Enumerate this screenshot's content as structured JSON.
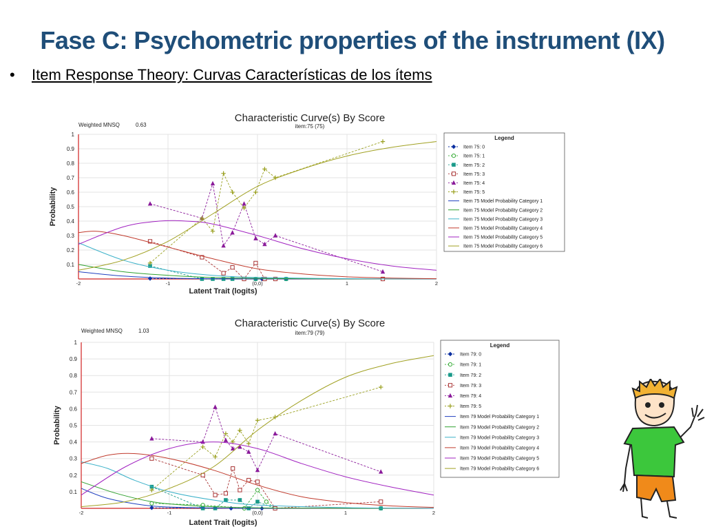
{
  "slide": {
    "title": "Fase C: Psychometric properties of the instrument (IX)",
    "bullet": "Item Response Theory: Curvas Características de los ítems"
  },
  "colors": {
    "title": "#1f4e79",
    "cat1": "#1f3fbf",
    "cat2": "#2ea02e",
    "cat3": "#38b0c8",
    "cat4": "#c0392b",
    "cat5": "#a020c0",
    "cat6": "#a0a020",
    "obs0": "#0b2fa0",
    "obs1": "#33aa33",
    "obs2": "#1a9a8a",
    "obs3": "#a83232",
    "obs4": "#8a1a9a",
    "obs5": "#9aa020"
  },
  "chart_data": [
    {
      "type": "line",
      "title": "Characteristic Curve(s) By Score",
      "subtitle": "item:75 (75)",
      "fit_label": "Weighted MNSQ",
      "fit_value": "0.63",
      "xlabel": "Latent Trait (logits)",
      "ylabel": "Probability",
      "xlim": [
        -2,
        2
      ],
      "ylim": [
        0,
        1
      ],
      "x_ticks": [
        "-2",
        "-1",
        "(0,0)",
        "1",
        "2"
      ],
      "y_ticks": [
        "0.1",
        "0.2",
        "0.3",
        "0.4",
        "0.5",
        "0.6",
        "0.7",
        "0.8",
        "0.9",
        "1"
      ],
      "legend_title": "Legend",
      "legend_position": "right",
      "grid": true,
      "series": [
        {
          "name": "Item 75: 0",
          "kind": "observed",
          "marker": "diamond",
          "color_key": "obs0",
          "points": [
            [
              -1.2,
              0.003
            ],
            [
              -0.15,
              0.0
            ],
            [
              0.05,
              0.0
            ],
            [
              1.4,
              0.0
            ]
          ]
        },
        {
          "name": "Item 75: 1",
          "kind": "observed",
          "marker": "circle",
          "color_key": "obs1",
          "points": [
            [
              -0.15,
              0.0
            ],
            [
              -0.02,
              0.0
            ],
            [
              0.08,
              0.0
            ],
            [
              0.2,
              0.0
            ],
            [
              0.32,
              0.0
            ],
            [
              1.4,
              0.0
            ]
          ]
        },
        {
          "name": "Item 75: 2",
          "kind": "observed",
          "marker": "square",
          "color_key": "obs2",
          "points": [
            [
              -1.2,
              0.09
            ],
            [
              -0.62,
              0.0
            ],
            [
              -0.5,
              0.0
            ],
            [
              -0.38,
              0.0
            ],
            [
              -0.28,
              0.0
            ],
            [
              -0.15,
              0.0
            ],
            [
              -0.02,
              0.0
            ],
            [
              0.2,
              0.0
            ],
            [
              0.32,
              0.0
            ],
            [
              1.4,
              0.0
            ]
          ]
        },
        {
          "name": "Item 75: 3",
          "kind": "observed",
          "marker": "square-open",
          "color_key": "obs3",
          "points": [
            [
              -1.2,
              0.26
            ],
            [
              -0.62,
              0.15
            ],
            [
              -0.38,
              0.04
            ],
            [
              -0.28,
              0.08
            ],
            [
              -0.15,
              0.0
            ],
            [
              -0.02,
              0.11
            ],
            [
              0.08,
              0.0
            ],
            [
              0.2,
              0.0
            ],
            [
              1.4,
              0.0
            ]
          ]
        },
        {
          "name": "Item 75: 4",
          "kind": "observed",
          "marker": "triangle",
          "color_key": "obs4",
          "points": [
            [
              -1.2,
              0.52
            ],
            [
              -0.62,
              0.42
            ],
            [
              -0.5,
              0.66
            ],
            [
              -0.38,
              0.23
            ],
            [
              -0.28,
              0.32
            ],
            [
              -0.15,
              0.52
            ],
            [
              -0.02,
              0.28
            ],
            [
              0.08,
              0.24
            ],
            [
              0.2,
              0.3
            ],
            [
              1.4,
              0.05
            ]
          ]
        },
        {
          "name": "Item 75: 5",
          "kind": "observed",
          "marker": "plus",
          "color_key": "obs5",
          "points": [
            [
              -1.2,
              0.11
            ],
            [
              -0.62,
              0.42
            ],
            [
              -0.5,
              0.33
            ],
            [
              -0.38,
              0.73
            ],
            [
              -0.28,
              0.6
            ],
            [
              -0.15,
              0.49
            ],
            [
              -0.02,
              0.6
            ],
            [
              0.08,
              0.76
            ],
            [
              0.2,
              0.7
            ],
            [
              1.4,
              0.95
            ]
          ]
        },
        {
          "name": "Item 75 Model Probability Category 1",
          "kind": "model",
          "color_key": "cat1",
          "points": [
            [
              -2,
              0.05
            ],
            [
              -1.5,
              0.02
            ],
            [
              -1,
              0.006
            ],
            [
              -0.5,
              0.002
            ],
            [
              0,
              0.0005
            ],
            [
              1,
              0.0
            ],
            [
              2,
              0.0
            ]
          ]
        },
        {
          "name": "Item 75 Model Probability Category 2",
          "kind": "model",
          "color_key": "cat2",
          "points": [
            [
              -2,
              0.1
            ],
            [
              -1.5,
              0.05
            ],
            [
              -1,
              0.025
            ],
            [
              -0.5,
              0.01
            ],
            [
              0,
              0.004
            ],
            [
              1,
              0.0005
            ],
            [
              2,
              0.0
            ]
          ]
        },
        {
          "name": "Item 75 Model Probability Category 3",
          "kind": "model",
          "color_key": "cat3",
          "points": [
            [
              -2,
              0.25
            ],
            [
              -1.5,
              0.13
            ],
            [
              -1,
              0.06
            ],
            [
              -0.5,
              0.025
            ],
            [
              0,
              0.01
            ],
            [
              1,
              0.002
            ],
            [
              2,
              0.0
            ]
          ]
        },
        {
          "name": "Item 75 Model Probability Category 4",
          "kind": "model",
          "color_key": "cat4",
          "points": [
            [
              -2,
              0.32
            ],
            [
              -1.8,
              0.33
            ],
            [
              -1.5,
              0.3
            ],
            [
              -1,
              0.22
            ],
            [
              -0.5,
              0.14
            ],
            [
              0,
              0.07
            ],
            [
              0.5,
              0.035
            ],
            [
              1,
              0.015
            ],
            [
              1.5,
              0.006
            ],
            [
              2,
              0.002
            ]
          ]
        },
        {
          "name": "Item 75 Model Probability Category 5",
          "kind": "model",
          "color_key": "cat5",
          "points": [
            [
              -2,
              0.24
            ],
            [
              -1.5,
              0.36
            ],
            [
              -1.1,
              0.4
            ],
            [
              -0.8,
              0.4
            ],
            [
              -0.5,
              0.38
            ],
            [
              0,
              0.3
            ],
            [
              0.5,
              0.21
            ],
            [
              1,
              0.14
            ],
            [
              1.5,
              0.09
            ],
            [
              2,
              0.06
            ]
          ]
        },
        {
          "name": "Item 75 Model Probability Category 6",
          "kind": "model",
          "color_key": "cat6",
          "points": [
            [
              -2,
              0.06
            ],
            [
              -1.5,
              0.13
            ],
            [
              -1,
              0.26
            ],
            [
              -0.5,
              0.45
            ],
            [
              0,
              0.64
            ],
            [
              0.5,
              0.76
            ],
            [
              1,
              0.85
            ],
            [
              1.5,
              0.91
            ],
            [
              2,
              0.95
            ]
          ]
        }
      ]
    },
    {
      "type": "line",
      "title": "Characteristic Curve(s) By Score",
      "subtitle": "item:79 (79)",
      "fit_label": "Weighted MNSQ",
      "fit_value": "1.03",
      "xlabel": "Latent Trait (logits)",
      "ylabel": "Probability",
      "xlim": [
        -2,
        2
      ],
      "ylim": [
        0,
        1
      ],
      "x_ticks": [
        "-2",
        "-1",
        "(0,0)",
        "1",
        "2"
      ],
      "y_ticks": [
        "0.1",
        "0.2",
        "0.3",
        "0.4",
        "0.5",
        "0.6",
        "0.7",
        "0.8",
        "0.9",
        "1"
      ],
      "legend_title": "Legend",
      "legend_position": "right",
      "grid": true,
      "series": [
        {
          "name": "Item 79: 0",
          "kind": "observed",
          "marker": "diamond",
          "color_key": "obs0",
          "points": [
            [
              -1.2,
              0.003
            ],
            [
              -0.3,
              0.0
            ],
            [
              -0.15,
              0.0
            ],
            [
              0.05,
              0.0
            ],
            [
              1.4,
              0.0
            ]
          ]
        },
        {
          "name": "Item 79: 1",
          "kind": "observed",
          "marker": "circle",
          "color_key": "obs1",
          "points": [
            [
              -1.2,
              0.03
            ],
            [
              -0.62,
              0.02
            ],
            [
              -0.15,
              0.0
            ],
            [
              0.0,
              0.11
            ],
            [
              0.1,
              0.04
            ],
            [
              0.2,
              0.0
            ],
            [
              1.4,
              0.0
            ]
          ]
        },
        {
          "name": "Item 79: 2",
          "kind": "observed",
          "marker": "square",
          "color_key": "obs2",
          "points": [
            [
              -1.2,
              0.13
            ],
            [
              -0.62,
              0.0
            ],
            [
              -0.48,
              0.0
            ],
            [
              -0.36,
              0.05
            ],
            [
              -0.2,
              0.05
            ],
            [
              -0.1,
              0.0
            ],
            [
              0.0,
              0.04
            ],
            [
              0.2,
              0.0
            ],
            [
              1.4,
              0.0
            ]
          ]
        },
        {
          "name": "Item 79: 3",
          "kind": "observed",
          "marker": "square-open",
          "color_key": "obs3",
          "points": [
            [
              -1.2,
              0.3
            ],
            [
              -0.62,
              0.2
            ],
            [
              -0.48,
              0.08
            ],
            [
              -0.36,
              0.09
            ],
            [
              -0.28,
              0.24
            ],
            [
              -0.2,
              0.11
            ],
            [
              -0.1,
              0.17
            ],
            [
              0.0,
              0.16
            ],
            [
              0.2,
              0.0
            ],
            [
              1.4,
              0.04
            ]
          ]
        },
        {
          "name": "Item 79: 4",
          "kind": "observed",
          "marker": "triangle",
          "color_key": "obs4",
          "points": [
            [
              -1.2,
              0.42
            ],
            [
              -0.62,
              0.4
            ],
            [
              -0.48,
              0.61
            ],
            [
              -0.36,
              0.41
            ],
            [
              -0.28,
              0.36
            ],
            [
              -0.2,
              0.37
            ],
            [
              -0.1,
              0.34
            ],
            [
              0.0,
              0.23
            ],
            [
              0.2,
              0.45
            ],
            [
              1.4,
              0.22
            ]
          ]
        },
        {
          "name": "Item 79: 5",
          "kind": "observed",
          "marker": "plus",
          "color_key": "obs5",
          "points": [
            [
              -1.2,
              0.11
            ],
            [
              -0.62,
              0.37
            ],
            [
              -0.48,
              0.31
            ],
            [
              -0.36,
              0.45
            ],
            [
              -0.28,
              0.4
            ],
            [
              -0.2,
              0.47
            ],
            [
              -0.1,
              0.39
            ],
            [
              0.0,
              0.53
            ],
            [
              0.2,
              0.55
            ],
            [
              1.4,
              0.73
            ]
          ]
        },
        {
          "name": "Item 79 Model Probability Category 1",
          "kind": "model",
          "color_key": "cat1",
          "points": [
            [
              -2,
              0.12
            ],
            [
              -1.7,
              0.06
            ],
            [
              -1.3,
              0.02
            ],
            [
              -1,
              0.008
            ],
            [
              -0.5,
              0.002
            ],
            [
              0,
              0.0
            ],
            [
              2,
              0.0
            ]
          ]
        },
        {
          "name": "Item 79 Model Probability Category 2",
          "kind": "model",
          "color_key": "cat2",
          "points": [
            [
              -2,
              0.16
            ],
            [
              -1.6,
              0.09
            ],
            [
              -1.2,
              0.04
            ],
            [
              -0.8,
              0.018
            ],
            [
              -0.3,
              0.006
            ],
            [
              0.5,
              0.001
            ],
            [
              2,
              0.0
            ]
          ]
        },
        {
          "name": "Item 79 Model Probability Category 3",
          "kind": "model",
          "color_key": "cat3",
          "points": [
            [
              -2,
              0.28
            ],
            [
              -1.7,
              0.24
            ],
            [
              -1.4,
              0.17
            ],
            [
              -1,
              0.1
            ],
            [
              -0.5,
              0.05
            ],
            [
              0,
              0.02
            ],
            [
              1,
              0.004
            ],
            [
              2,
              0.0
            ]
          ]
        },
        {
          "name": "Item 79 Model Probability Category 4",
          "kind": "model",
          "color_key": "cat4",
          "points": [
            [
              -2,
              0.27
            ],
            [
              -1.7,
              0.32
            ],
            [
              -1.4,
              0.33
            ],
            [
              -1,
              0.3
            ],
            [
              -0.5,
              0.23
            ],
            [
              0,
              0.14
            ],
            [
              0.5,
              0.07
            ],
            [
              1,
              0.035
            ],
            [
              1.5,
              0.015
            ],
            [
              2,
              0.006
            ]
          ]
        },
        {
          "name": "Item 79 Model Probability Category 5",
          "kind": "model",
          "color_key": "cat5",
          "points": [
            [
              -2,
              0.08
            ],
            [
              -1.5,
              0.25
            ],
            [
              -1,
              0.36
            ],
            [
              -0.5,
              0.4
            ],
            [
              0,
              0.36
            ],
            [
              0.5,
              0.27
            ],
            [
              1,
              0.19
            ],
            [
              1.5,
              0.13
            ],
            [
              2,
              0.08
            ]
          ]
        },
        {
          "name": "Item 79 Model Probability Category 6",
          "kind": "model",
          "color_key": "cat6",
          "points": [
            [
              -2,
              0.01
            ],
            [
              -1.5,
              0.04
            ],
            [
              -1,
              0.12
            ],
            [
              -0.5,
              0.25
            ],
            [
              0,
              0.47
            ],
            [
              0.5,
              0.65
            ],
            [
              1,
              0.79
            ],
            [
              1.5,
              0.87
            ],
            [
              2,
              0.92
            ]
          ]
        }
      ]
    }
  ]
}
